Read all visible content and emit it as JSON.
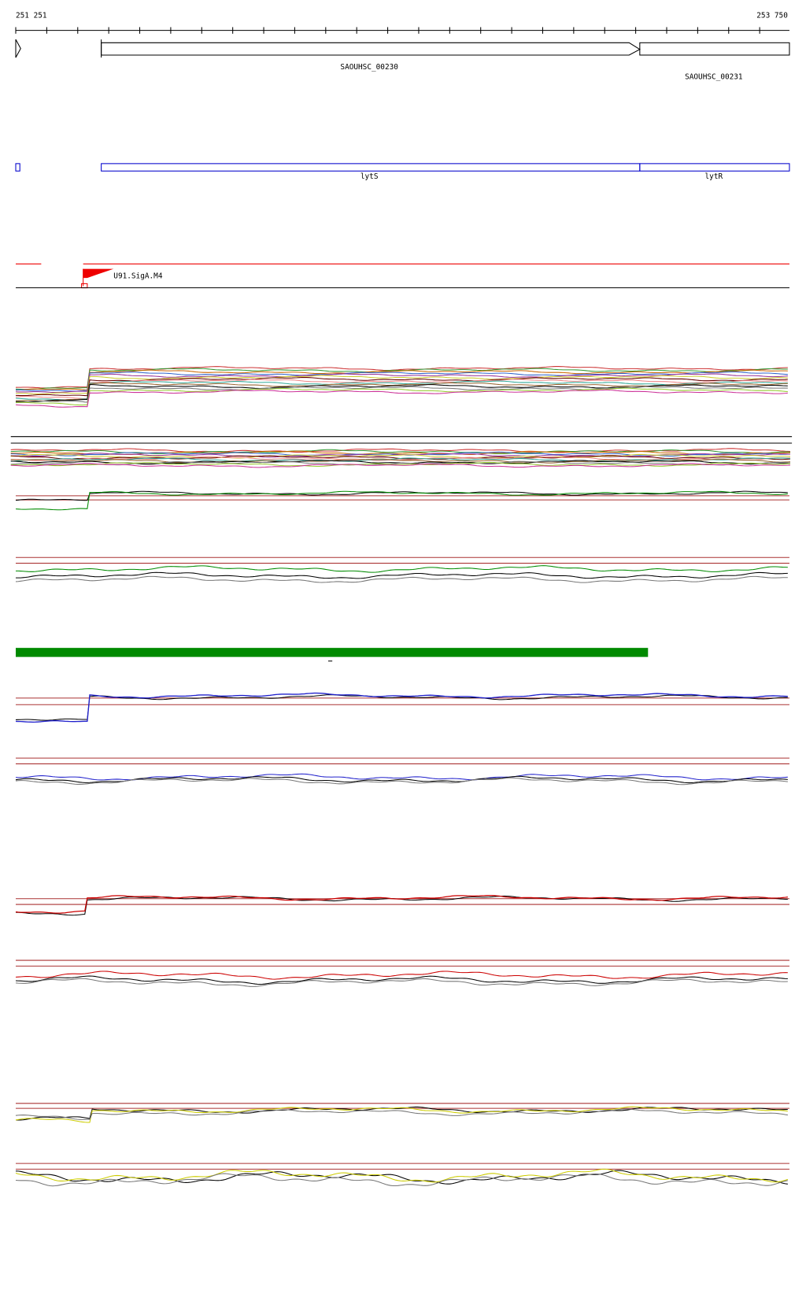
{
  "ruler": {
    "start": "251 251",
    "end": "253 750"
  },
  "genes": [
    {
      "label": "SAOUHSC_00230"
    },
    {
      "label": "SAOUHSC_00231"
    }
  ],
  "features": [
    {
      "label": "lytS"
    },
    {
      "label": "lytR"
    }
  ],
  "promoter": {
    "label": "U91.SigA.M4"
  }
}
